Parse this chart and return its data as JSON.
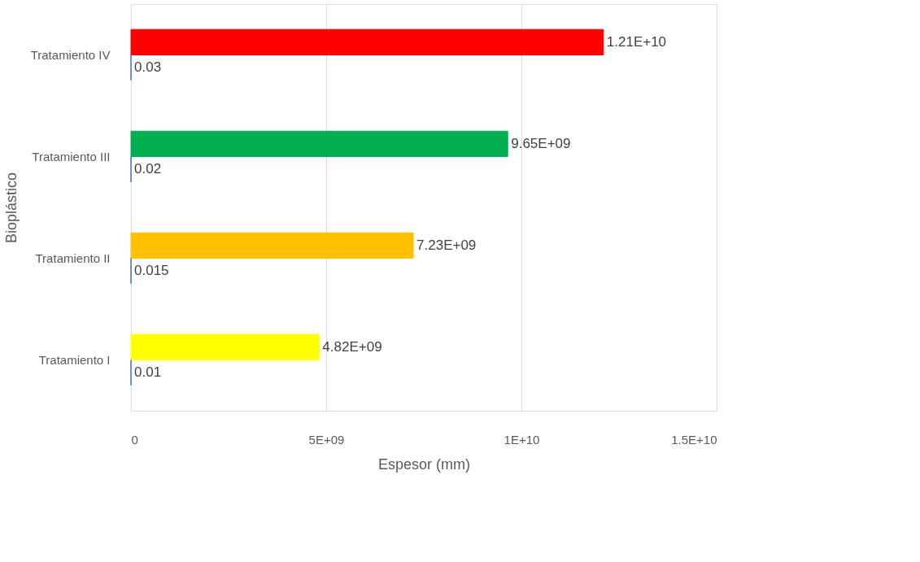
{
  "chart_data": {
    "type": "bar",
    "orientation": "horizontal",
    "xlabel": "Espesor (mm)",
    "ylabel": "Bioplástico",
    "categories": [
      "Tratamiento IV",
      "Tratamiento III",
      "Tratamiento II",
      "Tratamiento I"
    ],
    "series": [
      {
        "colors": [
          "#ff0000",
          "#00b050",
          "#ffc000",
          "#ffff00"
        ],
        "values": [
          12100000000,
          9650000000,
          7230000000,
          4820000000
        ],
        "value_labels": [
          "1.21E+10",
          "9.65E+09",
          "7.23E+09",
          "4.82E+09"
        ]
      },
      {
        "color": "#4472c4",
        "values": [
          0.03,
          0.02,
          0.015,
          0.01
        ],
        "value_labels": [
          "0.03",
          "0.02",
          "0.015",
          "0.01"
        ]
      }
    ],
    "xlim": [
      0,
      15000000000
    ],
    "xticks": [
      0,
      {
        "value": 5000000000,
        "label": "5E+09"
      },
      {
        "value": 10000000000,
        "label": "1E+10"
      },
      {
        "value": 15000000000,
        "label": "1.5E+10"
      }
    ],
    "grid": "x",
    "legend": false
  }
}
